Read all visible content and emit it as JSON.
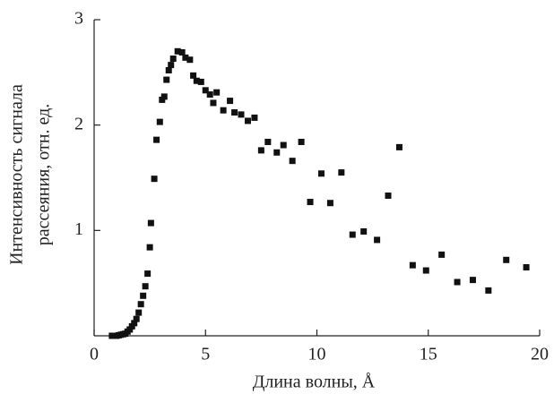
{
  "chart_data": {
    "type": "scatter",
    "xlabel": "Длина волны, Å",
    "ylabel": [
      "Интенсивность сигнала",
      "рассеяния, отн. ед."
    ],
    "x": [
      0.8,
      1.0,
      1.1,
      1.2,
      1.3,
      1.4,
      1.5,
      1.6,
      1.7,
      1.8,
      1.9,
      2.0,
      2.1,
      2.2,
      2.3,
      2.4,
      2.5,
      2.55,
      2.7,
      2.8,
      2.95,
      3.05,
      3.15,
      3.25,
      3.35,
      3.45,
      3.55,
      3.75,
      3.95,
      4.1,
      4.3,
      4.45,
      4.6,
      4.8,
      5.0,
      5.2,
      5.35,
      5.5,
      5.8,
      6.1,
      6.3,
      6.6,
      6.9,
      7.2,
      7.5,
      7.8,
      8.2,
      8.5,
      8.9,
      9.3,
      9.7,
      10.2,
      10.6,
      11.1,
      11.6,
      12.1,
      12.7,
      13.2,
      13.7,
      14.3,
      14.9,
      15.6,
      16.3,
      17.0,
      17.7,
      18.5,
      19.4
    ],
    "values": [
      0,
      0,
      0.005,
      0.01,
      0.015,
      0.02,
      0.04,
      0.06,
      0.09,
      0.12,
      0.16,
      0.22,
      0.3,
      0.38,
      0.47,
      0.59,
      0.84,
      1.07,
      1.49,
      1.86,
      2.03,
      2.24,
      2.27,
      2.43,
      2.52,
      2.57,
      2.63,
      2.7,
      2.69,
      2.64,
      2.62,
      2.47,
      2.42,
      2.41,
      2.33,
      2.29,
      2.21,
      2.31,
      2.14,
      2.23,
      2.12,
      2.1,
      2.04,
      2.07,
      1.76,
      1.84,
      1.74,
      1.81,
      1.66,
      1.84,
      1.27,
      1.54,
      1.26,
      1.55,
      0.96,
      0.99,
      0.91,
      1.33,
      1.79,
      0.67,
      0.62,
      0.77,
      0.51,
      0.53,
      0.43,
      0.72,
      0.65
    ],
    "color": "#111111",
    "xlim": [
      0,
      20
    ],
    "xticks": [
      0,
      5,
      10,
      15,
      20
    ],
    "ylim": [
      0,
      3
    ],
    "yticks": [
      1,
      2,
      3
    ]
  }
}
